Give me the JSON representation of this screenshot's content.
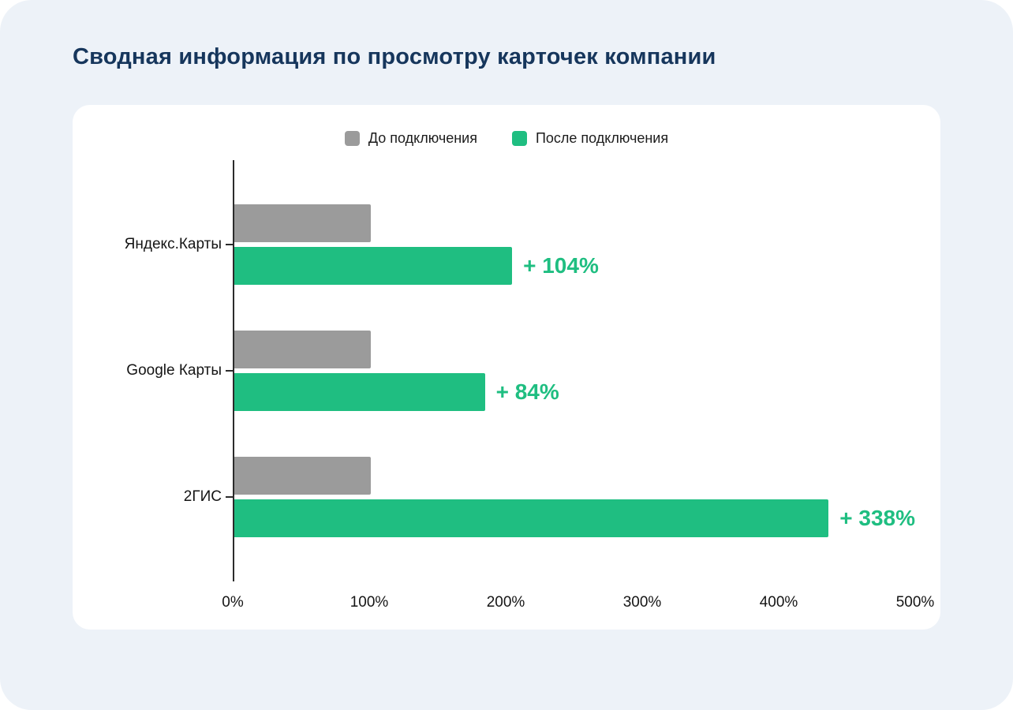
{
  "title": "Сводная информация по просмотру карточек компании",
  "colors": {
    "page_bg": "#edf2f8",
    "card_bg": "#ffffff",
    "title": "#16365c",
    "before": "#9b9b9b",
    "after": "#1fbe81"
  },
  "chart_data": {
    "type": "bar",
    "orientation": "horizontal",
    "title": "Сводная информация по просмотру карточек компании",
    "categories": [
      "Яндекс.Карты",
      "Google Карты",
      "2ГИС"
    ],
    "series": [
      {
        "name": "До подключения",
        "values": [
          100,
          100,
          100
        ]
      },
      {
        "name": "После подключения",
        "values": [
          204,
          184,
          438
        ]
      }
    ],
    "annotations": [
      "+ 104%",
      "+ 84%",
      "+ 338%"
    ],
    "xlim": [
      0,
      500
    ],
    "x_ticks": [
      "0%",
      "100%",
      "200%",
      "300%",
      "400%",
      "500%"
    ],
    "legend_position": "top",
    "grid": false
  }
}
